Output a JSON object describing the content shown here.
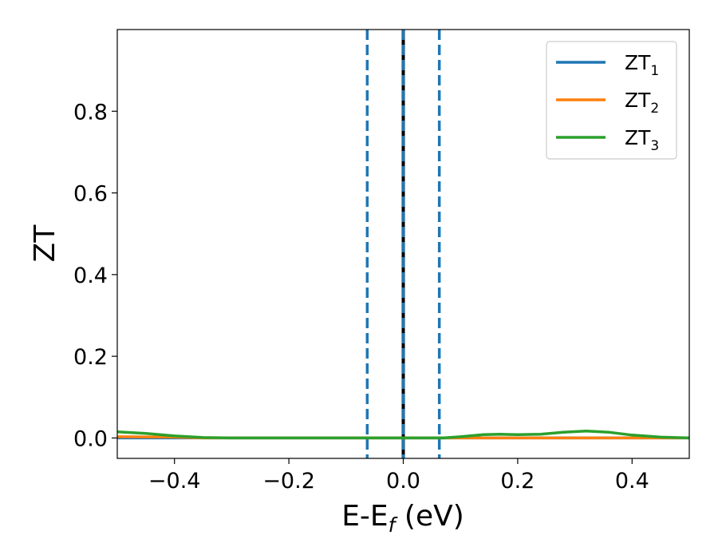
{
  "chart_data": {
    "type": "line",
    "xlabel": "E-E",
    "xlabel_sub": "f",
    "xlabel_unit": " (eV)",
    "ylabel": "ZT",
    "xlim": [
      -0.5,
      0.5
    ],
    "ylim": [
      -0.05,
      1.0
    ],
    "xticks": [
      -0.4,
      -0.2,
      0.0,
      0.2,
      0.4
    ],
    "xtick_labels": [
      "−0.4",
      "−0.2",
      "0.0",
      "0.2",
      "0.4"
    ],
    "yticks": [
      0.0,
      0.2,
      0.4,
      0.6,
      0.8
    ],
    "ytick_labels": [
      "0.0",
      "0.2",
      "0.4",
      "0.6",
      "0.8"
    ],
    "legend_position": "top-right",
    "grid": false,
    "series": [
      {
        "name": "ZT",
        "sub": "1",
        "color": "#1f77b4",
        "x": [
          -0.5,
          -0.4,
          -0.3,
          -0.2,
          -0.1,
          0.0,
          0.1,
          0.2,
          0.3,
          0.4,
          0.5
        ],
        "y": [
          0.0,
          0.0,
          0.0,
          0.0,
          0.0,
          0.0,
          0.0,
          0.0,
          0.0,
          0.0,
          0.0
        ]
      },
      {
        "name": "ZT",
        "sub": "2",
        "color": "#ff7f0e",
        "x": [
          -0.5,
          -0.4,
          -0.35,
          -0.2,
          -0.1,
          0.0,
          0.1,
          0.2,
          0.3,
          0.4,
          0.5
        ],
        "y": [
          0.003,
          0.002,
          0.0,
          0.0,
          0.0,
          0.0,
          0.0,
          0.0,
          0.0,
          0.0,
          0.0
        ]
      },
      {
        "name": "ZT",
        "sub": "3",
        "color": "#2ca02c",
        "x": [
          -0.5,
          -0.45,
          -0.4,
          -0.35,
          -0.3,
          -0.2,
          -0.1,
          0.0,
          0.07,
          0.1,
          0.14,
          0.17,
          0.2,
          0.24,
          0.28,
          0.32,
          0.36,
          0.4,
          0.45,
          0.5
        ],
        "y": [
          0.015,
          0.011,
          0.005,
          0.001,
          0.0,
          0.0,
          0.0,
          0.0,
          0.0,
          0.003,
          0.008,
          0.009,
          0.008,
          0.009,
          0.014,
          0.017,
          0.014,
          0.007,
          0.002,
          0.0
        ]
      }
    ],
    "vlines": [
      {
        "x": -0.063,
        "style": "dashed",
        "color": "#1f77b4"
      },
      {
        "x": 0.0,
        "style": "solid",
        "color": "#000000"
      },
      {
        "x": 0.0,
        "style": "dashed",
        "color": "#1f77b4"
      },
      {
        "x": 0.063,
        "style": "dashed",
        "color": "#1f77b4"
      }
    ]
  }
}
